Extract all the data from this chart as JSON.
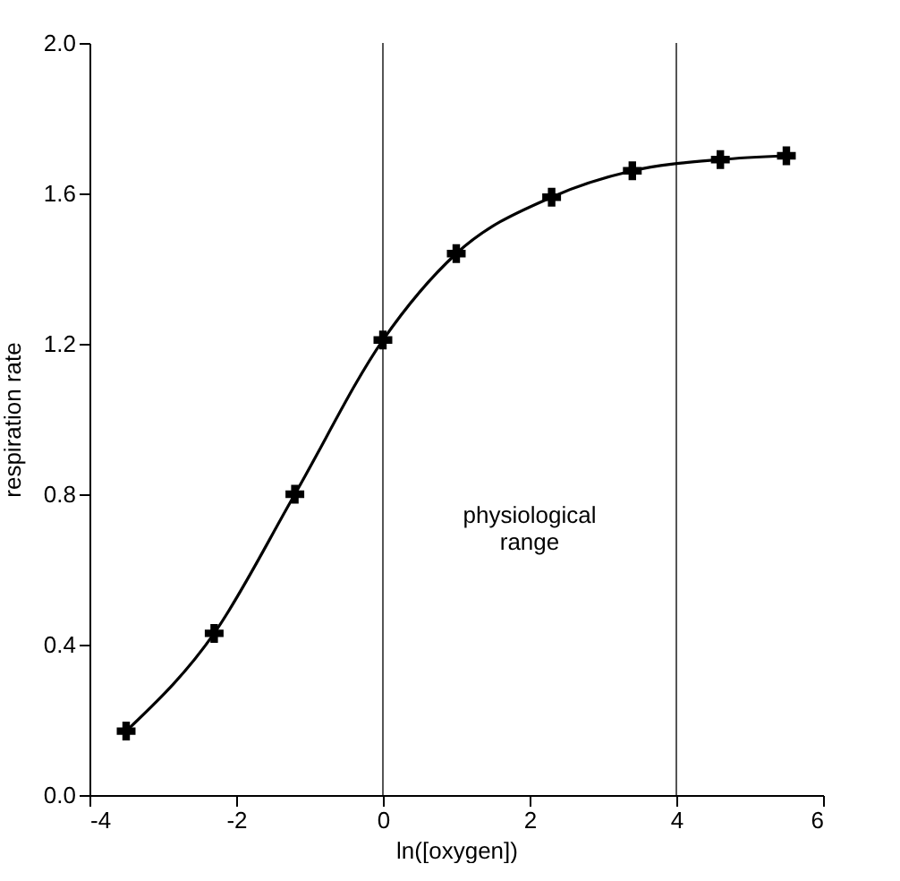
{
  "chart_data": {
    "type": "line",
    "xlabel": "ln([oxygen])",
    "ylabel": "respiration rate",
    "x": [
      -3.5,
      -2.3,
      -1.2,
      0,
      1.0,
      2.3,
      3.4,
      4.6,
      5.5
    ],
    "series": [
      {
        "color": "#000000",
        "values": [
          0.17,
          0.43,
          0.8,
          1.21,
          1.44,
          1.59,
          1.66,
          1.69,
          1.7
        ]
      }
    ],
    "xlim": [
      -4,
      6
    ],
    "xticks": [
      -4,
      -2,
      0,
      2,
      4,
      6
    ],
    "ylim": [
      0,
      2
    ],
    "yticks": [
      {
        "value": 0,
        "label": "0.0"
      },
      {
        "value": 0.4,
        "label": "0.4"
      },
      {
        "value": 0.8,
        "label": "0.8"
      },
      {
        "value": 1.2,
        "label": "1.2"
      },
      {
        "value": 1.6,
        "label": "1.6"
      },
      {
        "value": 2,
        "label": "2.0"
      }
    ],
    "ref_lines": [
      {
        "axis": "x",
        "value": 0,
        "color": "#555555"
      },
      {
        "axis": "x",
        "value": 4,
        "color": "#555555"
      }
    ],
    "annotations": [
      "physiological range"
    ],
    "marker": "cross",
    "line_style": "solid",
    "grid": false
  }
}
